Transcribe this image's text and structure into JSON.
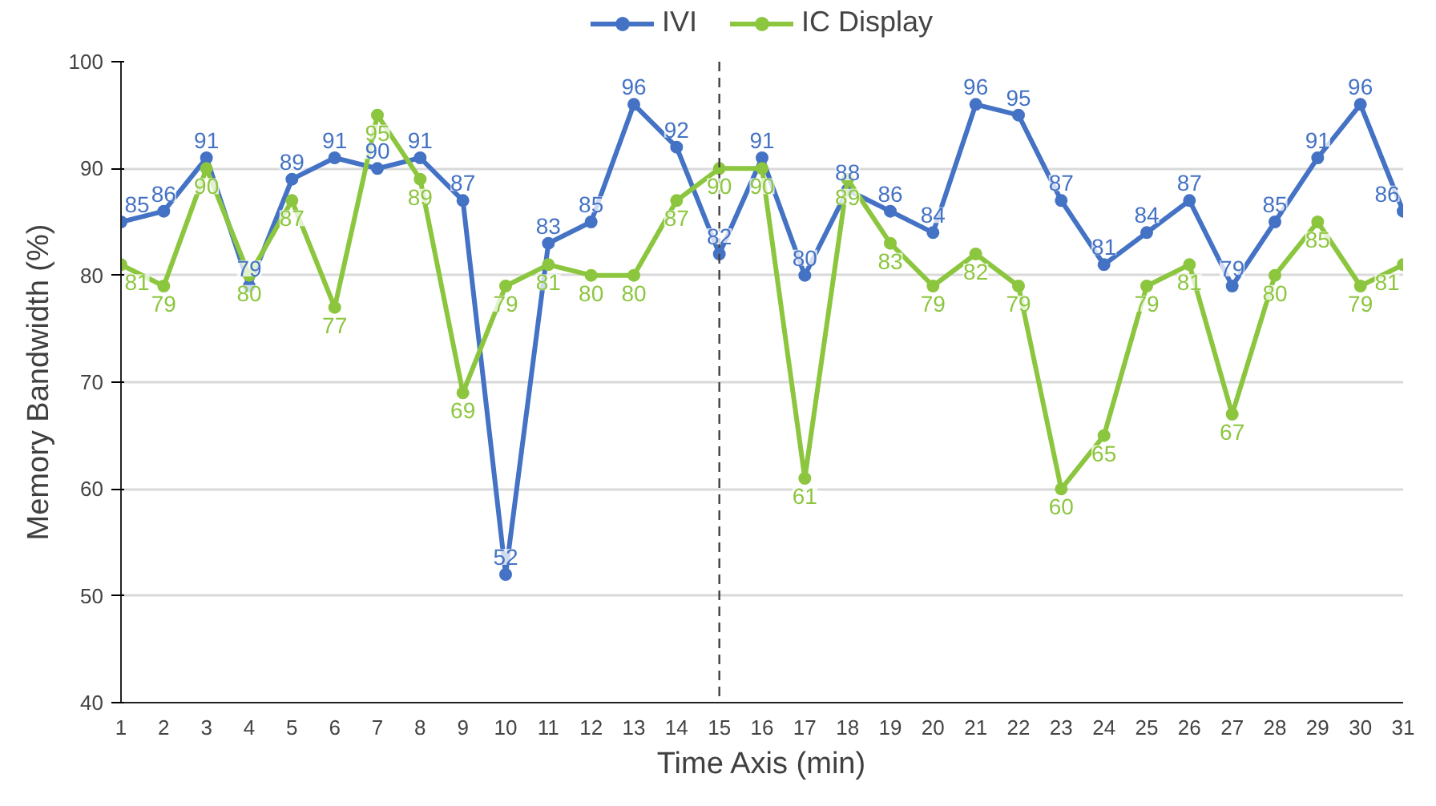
{
  "chart_data": {
    "type": "line",
    "xlabel": "Time Axis (min)",
    "ylabel": "Memory Bandwidth (%)",
    "x": [
      1,
      2,
      3,
      4,
      5,
      6,
      7,
      8,
      9,
      10,
      11,
      12,
      13,
      14,
      15,
      16,
      17,
      18,
      19,
      20,
      21,
      22,
      23,
      24,
      25,
      26,
      27,
      28,
      29,
      30,
      31
    ],
    "xlim": [
      1,
      31
    ],
    "xticks": [
      1,
      2,
      3,
      4,
      5,
      6,
      7,
      8,
      9,
      10,
      11,
      12,
      13,
      14,
      15,
      16,
      17,
      18,
      19,
      20,
      21,
      22,
      23,
      24,
      25,
      26,
      27,
      28,
      29,
      30,
      31
    ],
    "ylim": [
      40,
      100
    ],
    "yticks": [
      40,
      50,
      60,
      70,
      80,
      90,
      100
    ],
    "series": [
      {
        "name": "IVI",
        "color": "#4472c4",
        "values": [
          85,
          86,
          91,
          79,
          89,
          91,
          90,
          91,
          87,
          52,
          83,
          85,
          96,
          92,
          82,
          91,
          80,
          88,
          86,
          84,
          96,
          95,
          87,
          81,
          84,
          87,
          79,
          85,
          91,
          96,
          86
        ]
      },
      {
        "name": "IC Display",
        "color": "#8cc63f",
        "values": [
          81,
          79,
          90,
          80,
          87,
          77,
          95,
          89,
          69,
          79,
          81,
          80,
          80,
          87,
          90,
          90,
          61,
          89,
          83,
          79,
          82,
          79,
          60,
          65,
          79,
          81,
          67,
          80,
          85,
          79,
          81
        ]
      }
    ],
    "ref_lines": [
      {
        "axis": "x",
        "value": 15,
        "color": "#404040",
        "line_style": "dashed"
      }
    ],
    "grid": "y",
    "legend": "top",
    "marker": "circle",
    "line_style": "solid",
    "data_labels": true
  }
}
